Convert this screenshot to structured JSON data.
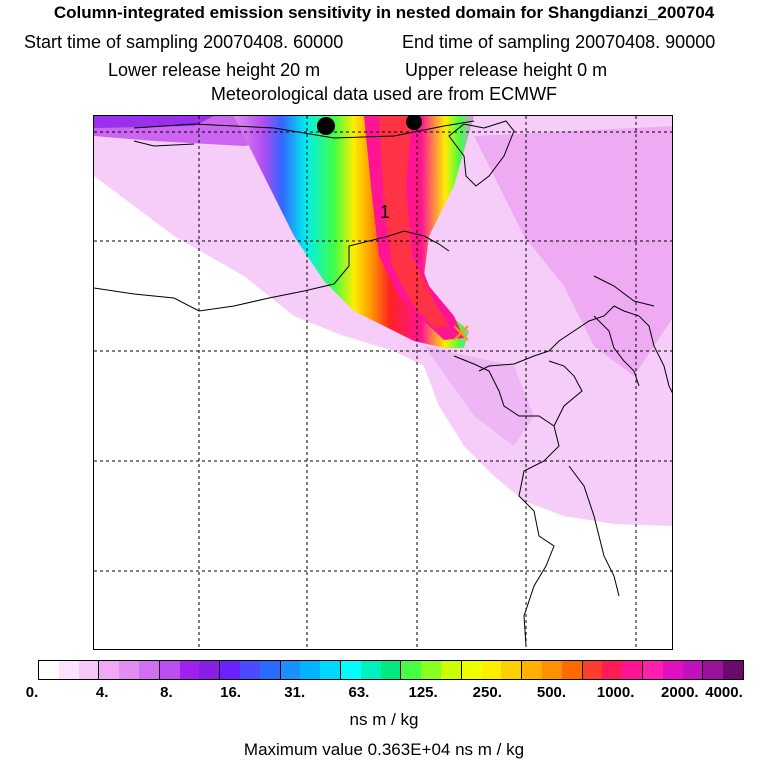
{
  "header": {
    "title": "Column-integrated emission sensitivity in nested domain for Shangdianzi_200704",
    "start_sampling": "Start time of sampling 20070408. 60000",
    "end_sampling": "End time of sampling 20070408. 90000",
    "lower_release": "Lower release height   20 m",
    "upper_release": "Upper release height    0 m",
    "met_data": "Meteorological data used are from ECMWF"
  },
  "map": {
    "contour_label": "1",
    "release_site": "Shangdianzi",
    "plume_colors": {
      "outer": "#ffffff",
      "faint": "#f4c4f8",
      "light": "#e28ef0",
      "violet": "#b44df0",
      "blue": "#3366ff",
      "cyan": "#00eeee",
      "green": "#44ff44",
      "yellow": "#ffee00",
      "orange": "#ff9900",
      "red": "#ff2222",
      "magenta": "#ff1493",
      "purple": "#aa11aa"
    }
  },
  "colorbar": {
    "colors": [
      "#ffffff",
      "#fbe4fb",
      "#f6c8f8",
      "#f0aaf4",
      "#e28ef0",
      "#d070ee",
      "#bb4ef0",
      "#a021ef",
      "#8a1de6",
      "#6b22ff",
      "#4a4aff",
      "#2a6bff",
      "#1a8fff",
      "#00b4ff",
      "#00d8ff",
      "#00ffff",
      "#00f0c0",
      "#00e880",
      "#44ff44",
      "#88ff22",
      "#ccff00",
      "#eeff00",
      "#ffee00",
      "#ffd000",
      "#ffb000",
      "#ff9000",
      "#ff6a00",
      "#ff3c30",
      "#ff1a5a",
      "#ff1493",
      "#ff20b0",
      "#e010c0",
      "#c010c0",
      "#9a129a",
      "#6a0a6a"
    ],
    "tick_labels": [
      "0.",
      "4.",
      "8.",
      "16.",
      "31.",
      "63.",
      "125.",
      "250.",
      "500.",
      "1000.",
      "2000.",
      "4000."
    ],
    "units": "ns m / kg",
    "max_value": "Maximum value  0.363E+04 ns m / kg"
  }
}
